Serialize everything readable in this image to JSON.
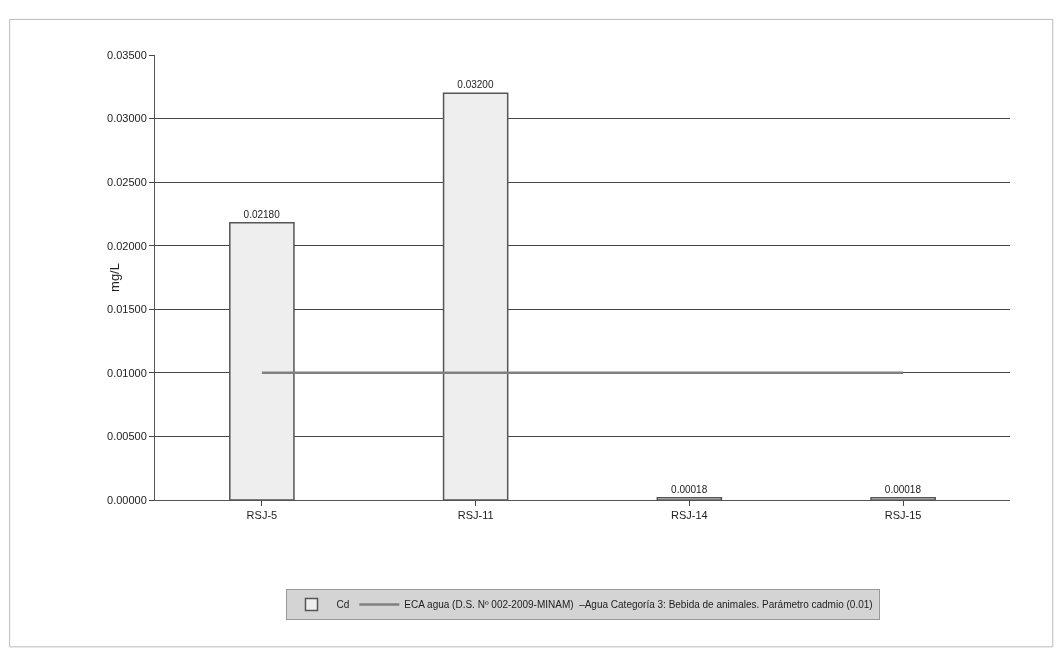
{
  "chart_data": {
    "type": "bar",
    "ylabel": "mg/L",
    "categories": [
      "RSJ-5",
      "RSJ-11",
      "RSJ-14",
      "RSJ-15"
    ],
    "series": [
      {
        "name": "Cd",
        "color": "#eeeeee",
        "values": [
          0.0218,
          0.032,
          0.00018,
          0.00018
        ],
        "value_labels": [
          "0.02180",
          "0.03200",
          "0.00018",
          "0.00018"
        ]
      },
      {
        "name": "ECA agua (D.S. Nº 002-2009-MINAM)  –Agua Categoría 3: Bebida de animales. Parámetro cadmio (0.01)",
        "type": "line",
        "color": "#808080",
        "values": [
          0.01,
          0.01,
          0.01,
          0.01
        ]
      }
    ],
    "ylim": [
      0,
      0.035
    ],
    "yticks": [
      {
        "value": 0,
        "label": "0.00000"
      },
      {
        "value": 0.005,
        "label": "0.00500"
      },
      {
        "value": 0.01,
        "label": "0.01000"
      },
      {
        "value": 0.015,
        "label": "0.01500"
      },
      {
        "value": 0.02,
        "label": "0.02000"
      },
      {
        "value": 0.025,
        "label": "0.02500"
      },
      {
        "value": 0.03,
        "label": "0.03000"
      },
      {
        "value": 0.035,
        "label": "0.03500"
      }
    ],
    "grid": "y",
    "legend": "bottom",
    "marker": "none",
    "line_style": "solid"
  }
}
